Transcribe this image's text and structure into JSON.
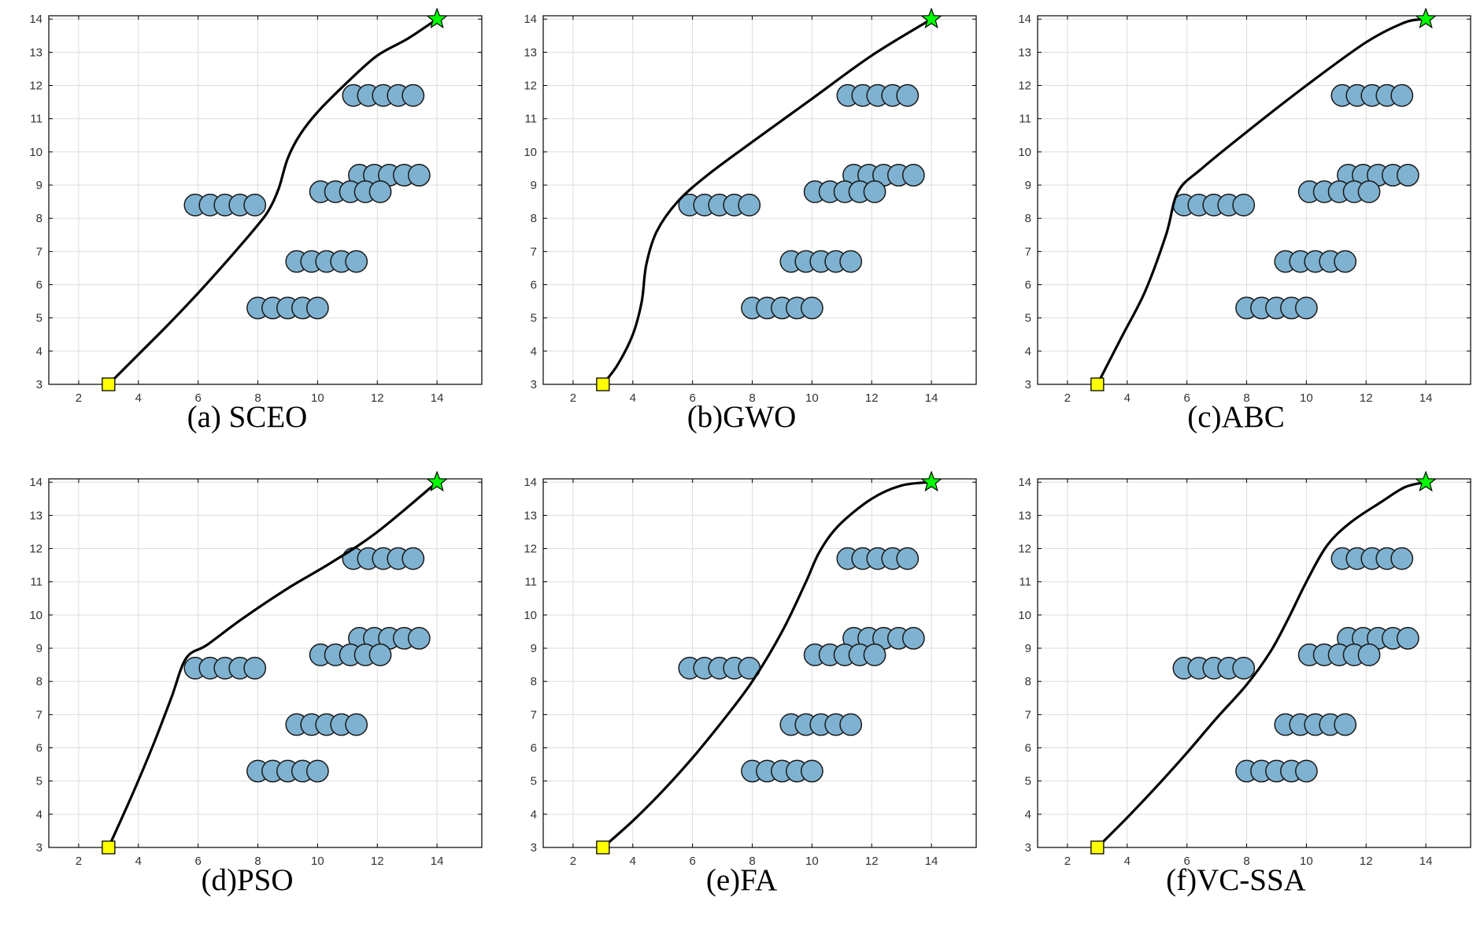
{
  "colors": {
    "obstacle_fill": "#7fb2d1",
    "obstacle_stroke": "#1a1a1a",
    "path": "#000000",
    "start_fill": "#ffff00",
    "goal_fill": "#00ff00",
    "grid": "#dddddd",
    "axes": "#000000"
  },
  "axes": {
    "xlim": [
      1,
      15.5
    ],
    "ylim": [
      3,
      14.1
    ],
    "xticks": [
      "2",
      "4",
      "6",
      "8",
      "10",
      "12",
      "14"
    ],
    "yticks": [
      "3",
      "4",
      "5",
      "6",
      "7",
      "8",
      "9",
      "10",
      "11",
      "12",
      "13",
      "14"
    ],
    "grid": true
  },
  "chart_data": [
    {
      "type": "line",
      "caption": "(a) SCEO",
      "start": [
        3,
        3
      ],
      "goal": [
        14,
        14
      ],
      "obstacles": {
        "radius": 0.36,
        "rows": [
          {
            "y": 11.7,
            "x": [
              11.2,
              11.7,
              12.2,
              12.7,
              13.2
            ]
          },
          {
            "y": 9.3,
            "x": [
              11.4,
              11.9,
              12.4,
              12.9,
              13.4
            ]
          },
          {
            "y": 8.8,
            "x": [
              10.1,
              10.6,
              11.1,
              11.6,
              12.1
            ]
          },
          {
            "y": 8.4,
            "x": [
              5.9,
              6.4,
              6.9,
              7.4,
              7.9
            ]
          },
          {
            "y": 6.7,
            "x": [
              9.3,
              9.8,
              10.3,
              10.8,
              11.3
            ]
          },
          {
            "y": 5.3,
            "x": [
              8.0,
              8.5,
              9.0,
              9.5,
              10.0
            ]
          }
        ]
      },
      "path": [
        [
          3,
          3
        ],
        [
          4,
          3.9
        ],
        [
          5,
          4.8
        ],
        [
          6,
          5.75
        ],
        [
          7,
          6.75
        ],
        [
          8,
          7.8
        ],
        [
          8.4,
          8.3
        ],
        [
          8.7,
          8.9
        ],
        [
          9.0,
          9.8
        ],
        [
          9.4,
          10.5
        ],
        [
          10,
          11.2
        ],
        [
          11,
          12.1
        ],
        [
          12,
          12.9
        ],
        [
          13,
          13.4
        ],
        [
          14,
          14
        ]
      ]
    },
    {
      "type": "line",
      "caption": "(b)GWO",
      "start": [
        3,
        3
      ],
      "goal": [
        14,
        14
      ],
      "obstacles": {
        "radius": 0.36,
        "rows": [
          {
            "y": 11.7,
            "x": [
              11.2,
              11.7,
              12.2,
              12.7,
              13.2
            ]
          },
          {
            "y": 9.3,
            "x": [
              11.4,
              11.9,
              12.4,
              12.9,
              13.4
            ]
          },
          {
            "y": 8.8,
            "x": [
              10.1,
              10.6,
              11.1,
              11.6,
              12.1
            ]
          },
          {
            "y": 8.4,
            "x": [
              5.9,
              6.4,
              6.9,
              7.4,
              7.9
            ]
          },
          {
            "y": 6.7,
            "x": [
              9.3,
              9.8,
              10.3,
              10.8,
              11.3
            ]
          },
          {
            "y": 5.3,
            "x": [
              8.0,
              8.5,
              9.0,
              9.5,
              10.0
            ]
          }
        ]
      },
      "path": [
        [
          3,
          3
        ],
        [
          3.5,
          3.6
        ],
        [
          4.0,
          4.5
        ],
        [
          4.3,
          5.5
        ],
        [
          4.45,
          6.6
        ],
        [
          4.8,
          7.6
        ],
        [
          5.5,
          8.5
        ],
        [
          6.5,
          9.3
        ],
        [
          8,
          10.3
        ],
        [
          10,
          11.6
        ],
        [
          12,
          12.9
        ],
        [
          14,
          14
        ]
      ]
    },
    {
      "type": "line",
      "caption": "(c)ABC",
      "start": [
        3,
        3
      ],
      "goal": [
        14,
        14
      ],
      "obstacles": {
        "radius": 0.36,
        "rows": [
          {
            "y": 11.7,
            "x": [
              11.2,
              11.7,
              12.2,
              12.7,
              13.2
            ]
          },
          {
            "y": 9.3,
            "x": [
              11.4,
              11.9,
              12.4,
              12.9,
              13.4
            ]
          },
          {
            "y": 8.8,
            "x": [
              10.1,
              10.6,
              11.1,
              11.6,
              12.1
            ]
          },
          {
            "y": 8.4,
            "x": [
              5.9,
              6.4,
              6.9,
              7.4,
              7.9
            ]
          },
          {
            "y": 6.7,
            "x": [
              9.3,
              9.8,
              10.3,
              10.8,
              11.3
            ]
          },
          {
            "y": 5.3,
            "x": [
              8.0,
              8.5,
              9.0,
              9.5,
              10.0
            ]
          }
        ]
      },
      "path": [
        [
          3,
          3
        ],
        [
          3.8,
          4.4
        ],
        [
          4.6,
          5.8
        ],
        [
          5.3,
          7.5
        ],
        [
          5.7,
          8.8
        ],
        [
          6.5,
          9.5
        ],
        [
          8,
          10.6
        ],
        [
          10,
          12
        ],
        [
          12,
          13.3
        ],
        [
          13.3,
          13.9
        ],
        [
          14,
          14
        ]
      ]
    },
    {
      "type": "line",
      "caption": "(d)PSO",
      "start": [
        3,
        3
      ],
      "goal": [
        14,
        14
      ],
      "obstacles": {
        "radius": 0.36,
        "rows": [
          {
            "y": 11.7,
            "x": [
              11.2,
              11.7,
              12.2,
              12.7,
              13.2
            ]
          },
          {
            "y": 9.3,
            "x": [
              11.4,
              11.9,
              12.4,
              12.9,
              13.4
            ]
          },
          {
            "y": 8.8,
            "x": [
              10.1,
              10.6,
              11.1,
              11.6,
              12.1
            ]
          },
          {
            "y": 8.4,
            "x": [
              5.9,
              6.4,
              6.9,
              7.4,
              7.9
            ]
          },
          {
            "y": 6.7,
            "x": [
              9.3,
              9.8,
              10.3,
              10.8,
              11.3
            ]
          },
          {
            "y": 5.3,
            "x": [
              8.0,
              8.5,
              9.0,
              9.5,
              10.0
            ]
          }
        ]
      },
      "path": [
        [
          3,
          3
        ],
        [
          3.8,
          4.6
        ],
        [
          4.5,
          6.1
        ],
        [
          5.1,
          7.5
        ],
        [
          5.6,
          8.7
        ],
        [
          6.3,
          9.1
        ],
        [
          7.5,
          9.9
        ],
        [
          9,
          10.8
        ],
        [
          10.5,
          11.6
        ],
        [
          12,
          12.5
        ],
        [
          14,
          14
        ]
      ]
    },
    {
      "type": "line",
      "caption": "(e)FA",
      "start": [
        3,
        3
      ],
      "goal": [
        14,
        14
      ],
      "obstacles": {
        "radius": 0.36,
        "rows": [
          {
            "y": 11.7,
            "x": [
              11.2,
              11.7,
              12.2,
              12.7,
              13.2
            ]
          },
          {
            "y": 9.3,
            "x": [
              11.4,
              11.9,
              12.4,
              12.9,
              13.4
            ]
          },
          {
            "y": 8.8,
            "x": [
              10.1,
              10.6,
              11.1,
              11.6,
              12.1
            ]
          },
          {
            "y": 8.4,
            "x": [
              5.9,
              6.4,
              6.9,
              7.4,
              7.9
            ]
          },
          {
            "y": 6.7,
            "x": [
              9.3,
              9.8,
              10.3,
              10.8,
              11.3
            ]
          },
          {
            "y": 5.3,
            "x": [
              8.0,
              8.5,
              9.0,
              9.5,
              10.0
            ]
          }
        ]
      },
      "path": [
        [
          3,
          3
        ],
        [
          4,
          3.8
        ],
        [
          5,
          4.7
        ],
        [
          6,
          5.7
        ],
        [
          7,
          6.8
        ],
        [
          8,
          8
        ],
        [
          9,
          9.5
        ],
        [
          9.8,
          11
        ],
        [
          10.25,
          11.9
        ],
        [
          10.9,
          12.7
        ],
        [
          12,
          13.5
        ],
        [
          13,
          13.9
        ],
        [
          14,
          14
        ]
      ]
    },
    {
      "type": "line",
      "caption": "(f)VC-SSA",
      "start": [
        3,
        3
      ],
      "goal": [
        14,
        14
      ],
      "obstacles": {
        "radius": 0.36,
        "rows": [
          {
            "y": 11.7,
            "x": [
              11.2,
              11.7,
              12.2,
              12.7,
              13.2
            ]
          },
          {
            "y": 9.3,
            "x": [
              11.4,
              11.9,
              12.4,
              12.9,
              13.4
            ]
          },
          {
            "y": 8.8,
            "x": [
              10.1,
              10.6,
              11.1,
              11.6,
              12.1
            ]
          },
          {
            "y": 8.4,
            "x": [
              5.9,
              6.4,
              6.9,
              7.4,
              7.9
            ]
          },
          {
            "y": 6.7,
            "x": [
              9.3,
              9.8,
              10.3,
              10.8,
              11.3
            ]
          },
          {
            "y": 5.3,
            "x": [
              8.0,
              8.5,
              9.0,
              9.5,
              10.0
            ]
          }
        ]
      },
      "path": [
        [
          3,
          3
        ],
        [
          4,
          3.9
        ],
        [
          5,
          4.85
        ],
        [
          6,
          5.85
        ],
        [
          7,
          6.9
        ],
        [
          8,
          7.9
        ],
        [
          8.8,
          8.9
        ],
        [
          9.4,
          9.9
        ],
        [
          10.0,
          11.0
        ],
        [
          10.7,
          12.1
        ],
        [
          11.5,
          12.8
        ],
        [
          12.5,
          13.4
        ],
        [
          13.3,
          13.85
        ],
        [
          14,
          14
        ]
      ]
    }
  ]
}
